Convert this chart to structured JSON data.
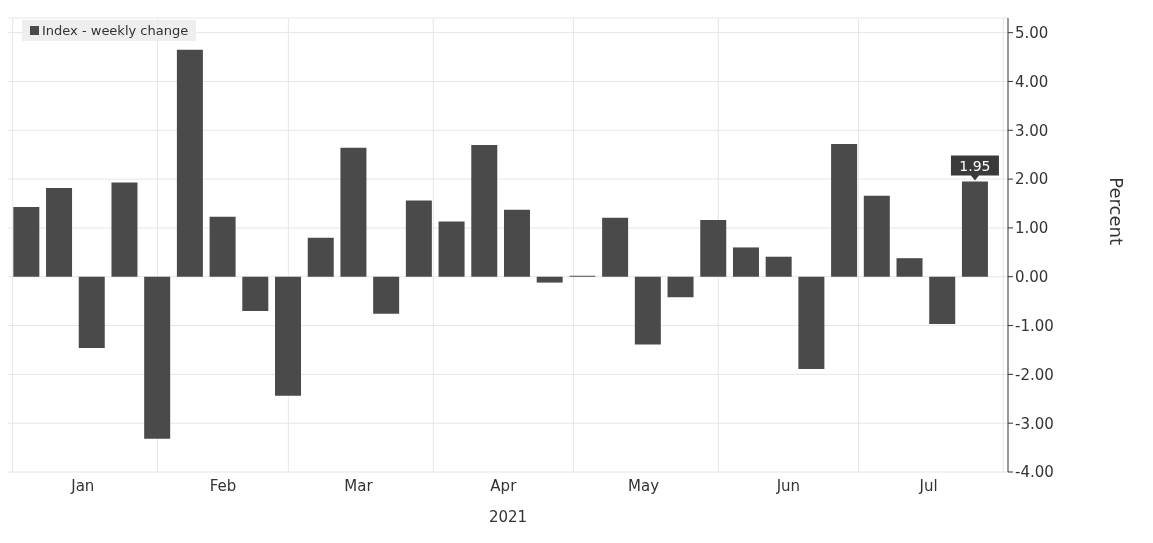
{
  "chart_data": {
    "type": "bar",
    "xlabel": "2021",
    "ylabel": "Percent",
    "legend": "top left",
    "grid": true,
    "x": [
      "2021-01-04",
      "2021-01-11",
      "2021-01-18",
      "2021-01-25",
      "2021-02-01",
      "2021-02-08",
      "2021-02-15",
      "2021-02-22",
      "2021-03-01",
      "2021-03-08",
      "2021-03-15",
      "2021-03-22",
      "2021-03-29",
      "2021-04-05",
      "2021-04-12",
      "2021-04-19",
      "2021-04-26",
      "2021-05-03",
      "2021-05-10",
      "2021-05-17",
      "2021-05-24",
      "2021-05-31",
      "2021-06-07",
      "2021-06-14",
      "2021-06-21",
      "2021-06-28",
      "2021-07-05",
      "2021-07-12",
      "2021-07-19",
      "2021-07-26"
    ],
    "series": [
      {
        "name": "Index - weekly change",
        "color": "#4a4a4a",
        "values": [
          1.43,
          1.82,
          -1.46,
          1.93,
          -3.32,
          4.65,
          1.23,
          -0.7,
          -2.44,
          0.8,
          2.64,
          -0.76,
          1.56,
          1.13,
          2.7,
          1.37,
          -0.12,
          0.02,
          1.21,
          -1.39,
          -0.42,
          1.16,
          0.6,
          0.41,
          -1.89,
          2.72,
          1.66,
          0.38,
          -0.97,
          1.95
        ],
        "value_labels": [
          null,
          null,
          null,
          null,
          null,
          null,
          null,
          null,
          null,
          null,
          null,
          null,
          null,
          null,
          null,
          null,
          null,
          null,
          null,
          null,
          null,
          null,
          null,
          null,
          null,
          null,
          null,
          null,
          null,
          "1.95"
        ]
      }
    ],
    "xlim": [
      "2020-12-31",
      "2021-08-02"
    ],
    "xticks": [
      {
        "value": "2021-01-01",
        "label": null
      },
      {
        "value": "2021-01-16",
        "label": "Jan"
      },
      {
        "value": "2021-02-01",
        "label": null
      },
      {
        "value": "2021-02-15",
        "label": "Feb"
      },
      {
        "value": "2021-03-01",
        "label": null
      },
      {
        "value": "2021-03-16",
        "label": "Mar"
      },
      {
        "value": "2021-04-01",
        "label": null
      },
      {
        "value": "2021-04-16",
        "label": "Apr"
      },
      {
        "value": "2021-05-01",
        "label": null
      },
      {
        "value": "2021-05-16",
        "label": "May"
      },
      {
        "value": "2021-06-01",
        "label": null
      },
      {
        "value": "2021-06-16",
        "label": "Jun"
      },
      {
        "value": "2021-07-01",
        "label": null
      },
      {
        "value": "2021-07-16",
        "label": "Jul"
      },
      {
        "value": "2021-08-01",
        "label": null
      }
    ],
    "ylim": [
      -4,
      5.3
    ],
    "yticks": [
      {
        "value": -4,
        "label": "-4.00"
      },
      {
        "value": -3,
        "label": "-3.00"
      },
      {
        "value": -2,
        "label": "-2.00"
      },
      {
        "value": -1,
        "label": "-1.00"
      },
      {
        "value": 0,
        "label": "0.00"
      },
      {
        "value": 1,
        "label": "1.00"
      },
      {
        "value": 2,
        "label": "2.00"
      },
      {
        "value": 3,
        "label": "3.00"
      },
      {
        "value": 4,
        "label": "4.00"
      },
      {
        "value": 5,
        "label": "5.00"
      }
    ]
  }
}
